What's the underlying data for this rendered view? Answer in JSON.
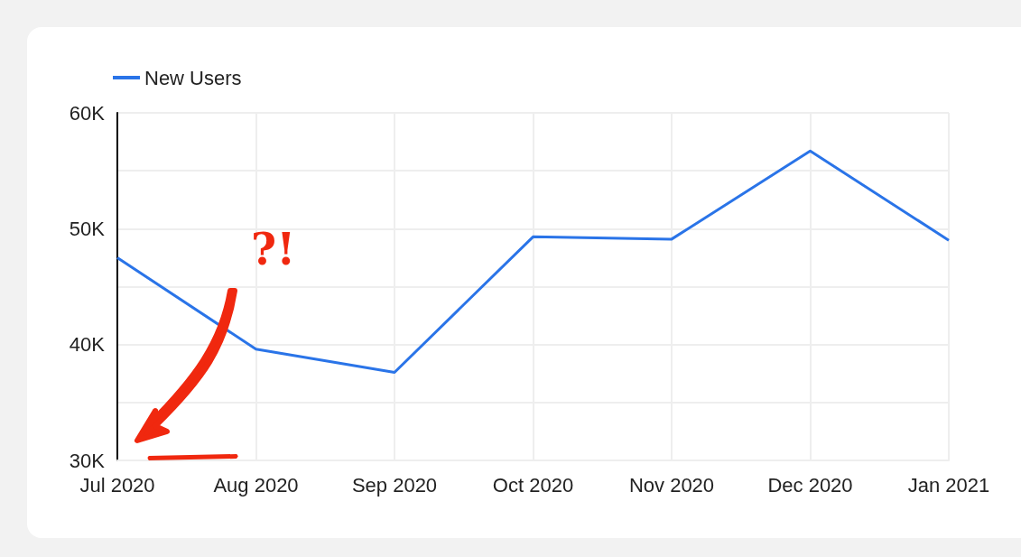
{
  "chart_data": {
    "type": "line",
    "categories": [
      "Jul 2020",
      "Aug 2020",
      "Sep 2020",
      "Oct 2020",
      "Nov 2020",
      "Dec 2020",
      "Jan 2021"
    ],
    "series": [
      {
        "name": "New Users",
        "color": "#2a74e8",
        "values": [
          47500,
          39600,
          37600,
          49300,
          49100,
          56700,
          49000
        ]
      }
    ],
    "ylim": [
      30000,
      60000
    ],
    "yticks": [
      {
        "value": 30000,
        "label": "30K"
      },
      {
        "value": 35000,
        "label": null
      },
      {
        "value": 40000,
        "label": "40K"
      },
      {
        "value": 45000,
        "label": null
      },
      {
        "value": 50000,
        "label": "50K"
      },
      {
        "value": 55000,
        "label": null
      },
      {
        "value": 60000,
        "label": "60K"
      }
    ],
    "grid": true,
    "legend": "top left",
    "marker": "none",
    "line_style": "solid",
    "annotations": [
      "?!"
    ]
  }
}
